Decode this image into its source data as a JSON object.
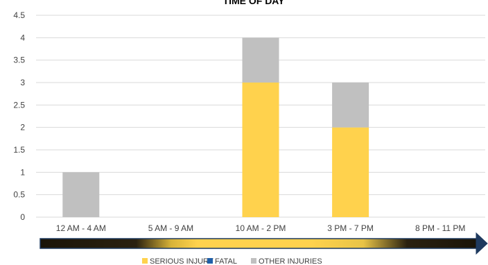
{
  "chart_data": {
    "type": "bar",
    "stacked": true,
    "title": "TIME OF DAY",
    "categories": [
      "12 AM - 4 AM",
      "5 AM - 9 AM",
      "10 AM - 2 PM",
      "3 PM - 7 PM",
      "8 PM - 11 PM"
    ],
    "series": [
      {
        "name": "SERIOUS INJURY",
        "color": "#ffd24d",
        "values": [
          0,
          0,
          3,
          2,
          0
        ]
      },
      {
        "name": "FATAL",
        "color": "#1f5fa8",
        "values": [
          0,
          0,
          0,
          0,
          0
        ]
      },
      {
        "name": "OTHER INJURIES",
        "color": "#c0c0c0",
        "values": [
          1,
          0,
          1,
          1,
          0
        ]
      }
    ],
    "ylim": [
      0,
      4.5
    ],
    "yticks": [
      "0",
      "0.5",
      "1",
      "1.5",
      "2",
      "2.5",
      "3",
      "3.5",
      "4",
      "4.5"
    ],
    "grid": true,
    "legend_position": "bottom"
  }
}
